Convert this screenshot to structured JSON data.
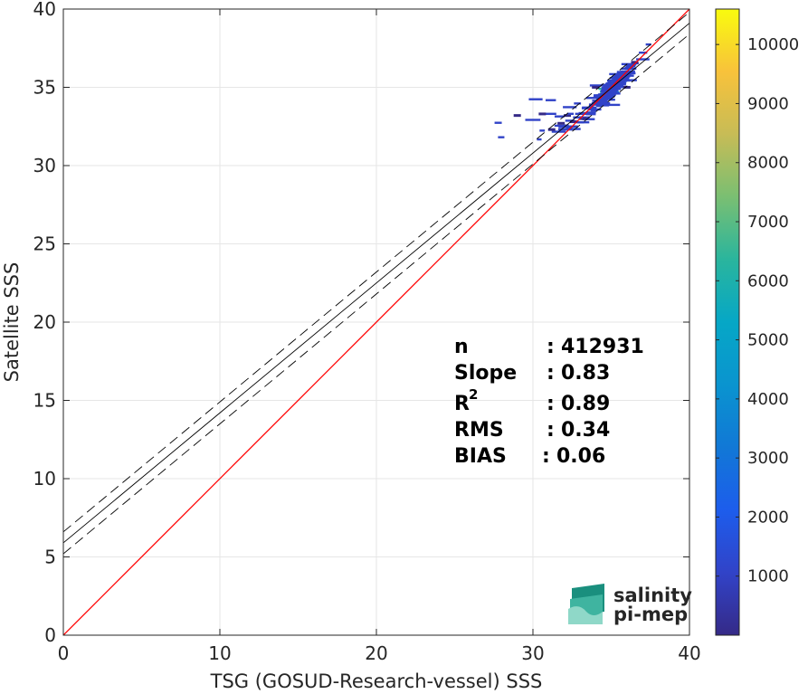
{
  "chart_data": {
    "type": "heatmap",
    "xlabel": "TSG (GOSUD-Research-vessel) SSS",
    "ylabel": "Satellite SSS",
    "xlim": [
      0,
      40
    ],
    "ylim": [
      0,
      40
    ],
    "xticks": [
      "0",
      "10",
      "20",
      "30",
      "40"
    ],
    "yticks": [
      "0",
      "5",
      "10",
      "15",
      "20",
      "25",
      "30",
      "35",
      "40"
    ],
    "grid": true,
    "colorbar": {
      "range": [
        0,
        10600
      ],
      "ticks": [
        "1000",
        "2000",
        "3000",
        "4000",
        "5000",
        "6000",
        "7000",
        "8000",
        "9000",
        "10000"
      ],
      "colormap": "parula"
    },
    "lines": [
      {
        "role": "identity",
        "color": "#ff0000",
        "x": [
          0,
          40
        ],
        "y": [
          0,
          40
        ]
      },
      {
        "role": "fit",
        "color": "#000000",
        "style": "solid",
        "x": [
          0,
          40
        ],
        "y": [
          5.9,
          39.1
        ]
      },
      {
        "role": "fit-upper",
        "color": "#000000",
        "style": "dashed",
        "x": [
          0,
          40
        ],
        "y": [
          6.6,
          39.8
        ]
      },
      {
        "role": "fit-lower",
        "color": "#000000",
        "style": "dashed",
        "x": [
          0,
          40
        ],
        "y": [
          5.2,
          38.4
        ]
      }
    ],
    "density": [
      {
        "x": 35.2,
        "y": 35.1,
        "count": 6500
      },
      {
        "x": 35.0,
        "y": 34.8,
        "count": 3000
      },
      {
        "x": 35.4,
        "y": 35.4,
        "count": 2500
      },
      {
        "x": 34.6,
        "y": 34.3,
        "count": 1800
      },
      {
        "x": 35.8,
        "y": 35.8,
        "count": 1500
      },
      {
        "x": 34.2,
        "y": 34.0,
        "count": 1200
      },
      {
        "x": 36.1,
        "y": 36.2,
        "count": 900
      },
      {
        "x": 33.8,
        "y": 33.6,
        "count": 800
      },
      {
        "x": 33.2,
        "y": 33.0,
        "count": 500
      },
      {
        "x": 32.6,
        "y": 32.8,
        "count": 400
      },
      {
        "x": 32.2,
        "y": 33.2,
        "count": 300
      },
      {
        "x": 31.8,
        "y": 32.7,
        "count": 250
      },
      {
        "x": 31.2,
        "y": 32.3,
        "count": 200
      },
      {
        "x": 30.6,
        "y": 33.3,
        "count": 150
      },
      {
        "x": 29.0,
        "y": 33.2,
        "count": 100
      },
      {
        "x": 36.5,
        "y": 36.6,
        "count": 300
      },
      {
        "x": 34.0,
        "y": 35.0,
        "count": 200
      },
      {
        "x": 36.0,
        "y": 35.0,
        "count": 250
      }
    ],
    "stats": [
      {
        "label": "n",
        "sep": ":",
        "value": "412931"
      },
      {
        "label": "Slope",
        "sep": ":",
        "value": "0.83"
      },
      {
        "label": "R",
        "sup": "2",
        "sep": ":",
        "value": "0.89"
      },
      {
        "label": "RMS",
        "sep": ":",
        "value": "0.34"
      },
      {
        "label": "BIAS",
        "sep": ":",
        "value": "0.06"
      }
    ]
  },
  "logo": {
    "line1": "salinity",
    "line2": "pi-mep",
    "color": "#1a9c8a"
  }
}
